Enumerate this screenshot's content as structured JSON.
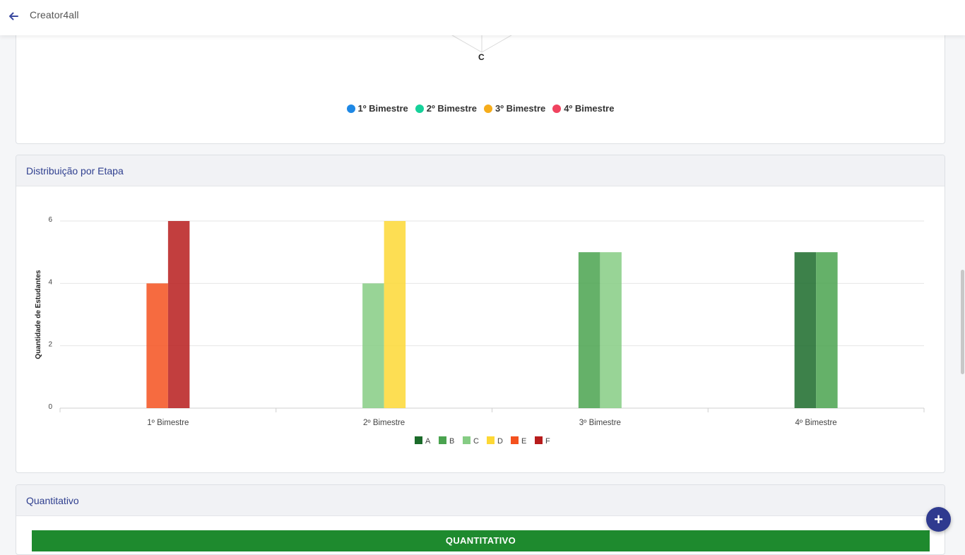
{
  "header": {
    "title": "Creator4all",
    "back_icon": "arrow-left-icon"
  },
  "radar_section": {
    "axis_label_c": "C",
    "legend": [
      {
        "label": "1º Bimestre",
        "color": "#1e88e5"
      },
      {
        "label": "2º Bimestre",
        "color": "#16d19a"
      },
      {
        "label": "3º Bimestre",
        "color": "#f6ad1b"
      },
      {
        "label": "4º Bimestre",
        "color": "#f0435f"
      }
    ]
  },
  "distribution": {
    "title": "Distribuição por Etapa"
  },
  "chart_data": {
    "type": "bar",
    "categories": [
      "1º Bimestre",
      "2º Bimestre",
      "3º Bimestre",
      "4º Bimestre"
    ],
    "ylabel": "Quantidade de Estudantes",
    "xlabel": "",
    "ylim": [
      0,
      6
    ],
    "yticks": [
      0,
      2,
      4,
      6
    ],
    "grid": true,
    "legend_position": "bottom",
    "series": [
      {
        "name": "A",
        "color": "#1b6b2a",
        "values": [
          0,
          0,
          0,
          5
        ]
      },
      {
        "name": "B",
        "color": "#4aa34f",
        "values": [
          0,
          0,
          5,
          5
        ]
      },
      {
        "name": "C",
        "color": "#86cc84",
        "values": [
          0,
          4,
          5,
          0
        ]
      },
      {
        "name": "D",
        "color": "#fdd835",
        "values": [
          0,
          6,
          0,
          0
        ]
      },
      {
        "name": "E",
        "color": "#f4511e",
        "values": [
          4,
          0,
          0,
          0
        ]
      },
      {
        "name": "F",
        "color": "#b71c1c",
        "values": [
          6,
          0,
          0,
          0
        ]
      }
    ]
  },
  "quantitativo": {
    "title": "Quantitativo",
    "bar_label": "QUANTITATIVO"
  },
  "fab": {
    "label": "+"
  }
}
